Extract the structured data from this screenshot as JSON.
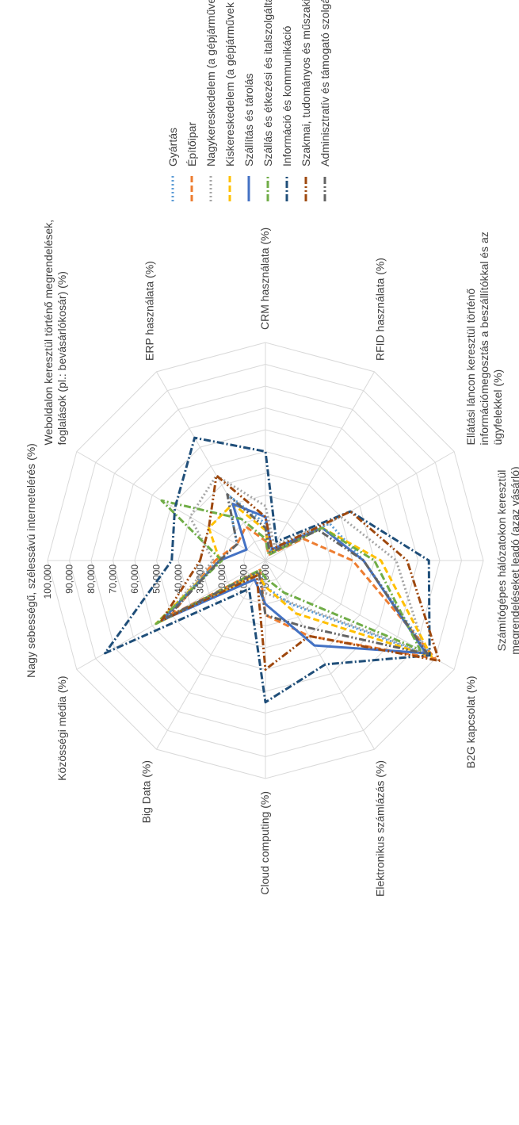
{
  "chart_data": {
    "type": "radar",
    "title": "",
    "rmax": 100,
    "tick_labels": [
      "0,000",
      "10,000",
      "20,000",
      "30,000",
      "40,000",
      "50,000",
      "60,000",
      "70,000",
      "80,000",
      "90,000",
      "100,000"
    ],
    "axes": [
      [
        "Nagy sebességű, szélessávú internetelérés (%)"
      ],
      [
        "Weboldalon keresztül történő megrendelések,",
        "foglalások (pl.: bevásárlókosár) (%)"
      ],
      [
        "ERP használata (%)"
      ],
      [
        "CRM használata (%)"
      ],
      [
        "RFID használata (%)"
      ],
      [
        "Ellátási láncon keresztül történő",
        "információmegosztás a beszállítókkal és az",
        "ügyfelekkel (%)"
      ],
      [
        "Számítógépes hálózatokon keresztül",
        "megrendeléseket leadó (azaz vásárló)",
        "vállalkozások (%)"
      ],
      [
        "B2G kapcsolat (%)"
      ],
      [
        "Elektronikus számlázás (%)"
      ],
      [
        "Cloud computing (%)"
      ],
      [
        "Big Data (%)"
      ],
      [
        "Közösségi média (%)"
      ]
    ],
    "series": [
      {
        "name": "Gyártás",
        "color": "#5B9BD5",
        "dash": "dot",
        "values": [
          22,
          15,
          35,
          17,
          5,
          34,
          45,
          88,
          23,
          12,
          6,
          55
        ]
      },
      {
        "name": "Építőipar",
        "color": "#ED7D31",
        "dash": "dash",
        "values": [
          23,
          15,
          18,
          9,
          3,
          20,
          40,
          90,
          40,
          25,
          5,
          50
        ]
      },
      {
        "name": "Nagykereskedelem (a gépjárművek és motorkerékpárok kivételével)",
        "color": "#A5A5A5",
        "dash": "dot",
        "values": [
          24,
          40,
          45,
          25,
          8,
          40,
          60,
          85,
          22,
          15,
          8,
          55
        ]
      },
      {
        "name": "Kiskereskedelem (a gépjárművek és motorkerékpárok kivételével)",
        "color": "#FFC000",
        "dash": "dash",
        "values": [
          21,
          30,
          30,
          14,
          4,
          30,
          53,
          88,
          28,
          12,
          7,
          58
        ]
      },
      {
        "name": "Szállítás és tárolás",
        "color": "#4472C4",
        "dash": "solid",
        "values": [
          21,
          10,
          30,
          20,
          6,
          30,
          45,
          85,
          45,
          20,
          10,
          55
        ]
      },
      {
        "name": "Szállás és étkezési és italszolgáltatási tevékenység",
        "color": "#70AD47",
        "dash": "dashdot",
        "values": [
          20,
          55,
          22,
          10,
          3,
          30,
          50,
          82,
          17,
          8,
          5,
          58
        ]
      },
      {
        "name": "Információ és kommunikáció",
        "color": "#1F4E79",
        "dash": "dashdot",
        "values": [
          43,
          48,
          65,
          50,
          10,
          45,
          75,
          87,
          55,
          65,
          15,
          85
        ]
      },
      {
        "name": "Szakmai, tudományos és műszaki tevékenység",
        "color": "#9E480E",
        "dash": "dashdotdot",
        "values": [
          30,
          30,
          45,
          20,
          6,
          45,
          65,
          92,
          40,
          50,
          8,
          55
        ]
      },
      {
        "name": "Adminisztratív és támogató szolgáltatás",
        "color": "#636363",
        "dash": "dashdotdot",
        "values": [
          21,
          15,
          35,
          15,
          4,
          28,
          45,
          86,
          35,
          25,
          6,
          52
        ]
      }
    ]
  }
}
